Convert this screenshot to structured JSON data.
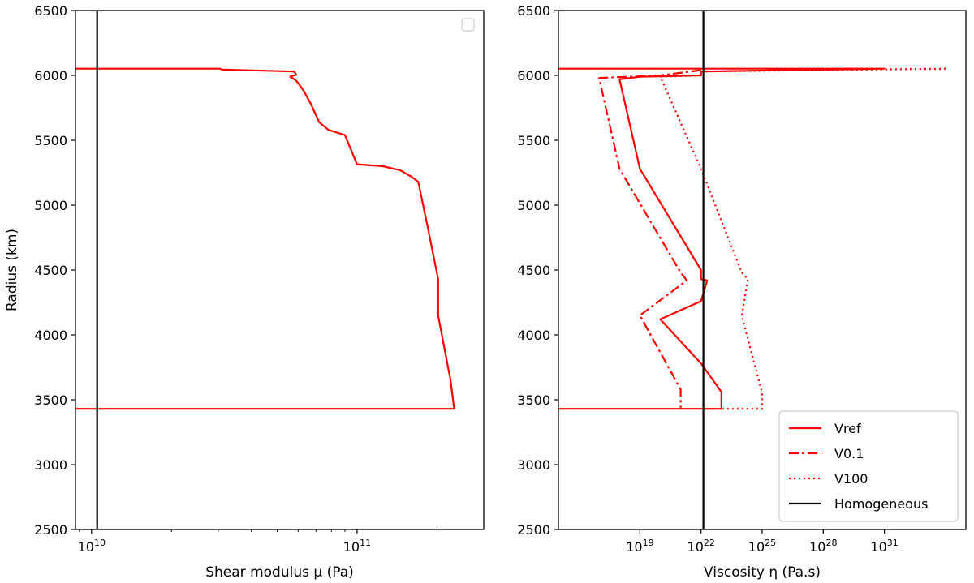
{
  "chart_data": [
    {
      "type": "line",
      "xlabel": "Shear modulus μ (Pa)",
      "ylabel": "Radius (km)",
      "xscale": "log",
      "xlim": [
        8700000000.0,
        300000000000.0
      ],
      "ylim": [
        2500,
        6500
      ],
      "yticks": [
        2500,
        3000,
        3500,
        4000,
        4500,
        5000,
        5500,
        6000,
        6500
      ],
      "xticks": [
        {
          "value": 10000000000.0,
          "base": "10",
          "exp": "10"
        },
        {
          "value": 100000000000.0,
          "base": "10",
          "exp": "11"
        }
      ],
      "legend": {
        "position": "top-right",
        "entries": []
      },
      "series": [
        {
          "color": "#ff0000",
          "style": "solid",
          "points": [
            [
              8700000000.0,
              6052
            ],
            [
              30500000000.0,
              6052
            ],
            [
              31000000000.0,
              6045
            ],
            [
              58000000000.0,
              6030
            ],
            [
              59000000000.0,
              6005
            ],
            [
              56000000000.0,
              5990
            ],
            [
              59000000000.0,
              5960
            ],
            [
              63000000000.0,
              5880
            ],
            [
              67000000000.0,
              5780
            ],
            [
              72000000000.0,
              5640
            ],
            [
              78000000000.0,
              5580
            ],
            [
              90000000000.0,
              5540
            ],
            [
              100000000000.0,
              5315
            ],
            [
              125000000000.0,
              5300
            ],
            [
              145000000000.0,
              5270
            ],
            [
              160000000000.0,
              5220
            ],
            [
              170000000000.0,
              5180
            ],
            [
              185000000000.0,
              4820
            ],
            [
              202000000000.0,
              4430
            ],
            [
              202000000000.0,
              4150
            ],
            [
              225000000000.0,
              3650
            ],
            [
              232000000000.0,
              3430
            ],
            [
              8700000000.0,
              3430
            ]
          ]
        },
        {
          "color": "#000000",
          "style": "solid",
          "points": [
            [
              10500000000.0,
              2500
            ],
            [
              10500000000.0,
              6500
            ]
          ]
        }
      ]
    },
    {
      "type": "line",
      "xlabel": "Viscosity η (Pa.s)",
      "ylabel": "",
      "xscale": "log",
      "xlim": [
        1000000000000000.0,
        1e+35
      ],
      "ylim": [
        2500,
        6500
      ],
      "yticks": [
        2500,
        3000,
        3500,
        4000,
        4500,
        5000,
        5500,
        6000,
        6500
      ],
      "xticks": [
        {
          "value": 1e+19,
          "base": "10",
          "exp": "19"
        },
        {
          "value": 1e+22,
          "base": "10",
          "exp": "22"
        },
        {
          "value": 1e+25,
          "base": "10",
          "exp": "25"
        },
        {
          "value": 1e+28,
          "base": "10",
          "exp": "28"
        },
        {
          "value": 1e+31,
          "base": "10",
          "exp": "31"
        }
      ],
      "legend": {
        "position": "bottom-right",
        "entries": [
          {
            "label": "Vref",
            "color": "#ff0000",
            "style": "solid"
          },
          {
            "label": "V0.1",
            "color": "#ff0000",
            "style": "dashdot"
          },
          {
            "label": "V100",
            "color": "#ff0000",
            "style": "dotted"
          },
          {
            "label": "Homogeneous",
            "color": "#000000",
            "style": "solid"
          }
        ]
      },
      "series": [
        {
          "name": "Vref",
          "color": "#ff0000",
          "style": "solid",
          "points": [
            [
              1000000000000000.0,
              6052
            ],
            [
              1e+31,
              6052
            ],
            [
              1e+22,
              6030
            ],
            [
              1e+22,
              6000
            ],
            [
              1e+19,
              5990
            ],
            [
              1e+18,
              5970
            ],
            [
              1e+19,
              5280
            ],
            [
              1e+22,
              4500
            ],
            [
              1e+22,
              4430
            ],
            [
              2e+22,
              4420
            ],
            [
              1e+22,
              4260
            ],
            [
              1e+20,
              4120
            ],
            [
              1e+22,
              3780
            ],
            [
              1e+23,
              3560
            ],
            [
              1e+23,
              3430
            ],
            [
              1000000000000000.0,
              3430
            ]
          ]
        },
        {
          "name": "V0.1",
          "color": "#ff0000",
          "style": "dashdot",
          "points": [
            [
              1e+22,
              6040
            ],
            [
              1e+20,
              6000
            ],
            [
              1e+17,
              5980
            ],
            [
              1e+18,
              5280
            ],
            [
              1e+21,
              4480
            ],
            [
              2e+21,
              4420
            ],
            [
              1e+19,
              4150
            ],
            [
              1e+21,
              3580
            ],
            [
              1e+21,
              3430
            ]
          ]
        },
        {
          "name": "V100",
          "color": "#ff0000",
          "style": "dotted",
          "points": [
            [
              1e+34,
              6052
            ],
            [
              1e+22,
              6030
            ],
            [
              1e+22,
              6000
            ],
            [
              1e+20,
              5990
            ],
            [
              1e+22,
              5280
            ],
            [
              1e+24,
              4480
            ],
            [
              2e+24,
              4430
            ],
            [
              1e+24,
              4150
            ],
            [
              1e+25,
              3550
            ],
            [
              1e+25,
              3430
            ],
            [
              1e+22,
              3430
            ]
          ]
        },
        {
          "name": "Homogeneous",
          "color": "#000000",
          "style": "solid",
          "points": [
            [
              1.3e+22,
              2500
            ],
            [
              1.3e+22,
              6500
            ]
          ]
        }
      ]
    }
  ]
}
